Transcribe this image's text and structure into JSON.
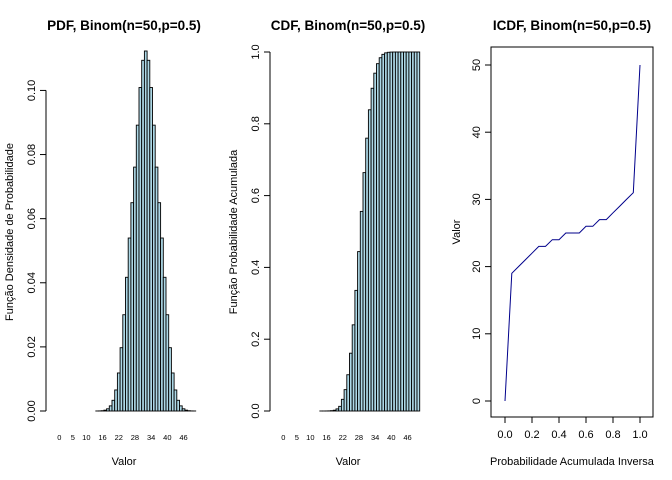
{
  "chart_data": [
    {
      "type": "bar",
      "title": "PDF, Binom(n=50,p=0.5)",
      "xlabel": "Valor",
      "ylabel": "Função Densidade de Probabilidade",
      "n": 50,
      "p": 0.5,
      "ylim": [
        0,
        0.1123
      ],
      "yticks": [
        0.0,
        0.02,
        0.04,
        0.06,
        0.08,
        0.1
      ],
      "ytick_labels": [
        "0.00",
        "0.02",
        "0.04",
        "0.06",
        "0.08",
        "0.10"
      ],
      "xtick_labels": [
        "0",
        "5",
        "10",
        "16",
        "22",
        "28",
        "34",
        "40",
        "46"
      ],
      "bar_color": "#ADD8E6",
      "values": [
        0,
        0,
        0,
        0,
        0,
        0,
        0,
        0,
        0,
        0,
        0,
        0,
        0,
        0,
        1e-05,
        3e-05,
        9e-05,
        0.00026,
        0.00069,
        0.0016,
        0.00334,
        0.00656,
        0.01186,
        0.01975,
        0.03003,
        0.04171,
        0.05396,
        0.06498,
        0.07608,
        0.08917,
        0.1009,
        0.1094,
        0.1123,
        0.1094,
        0.1009,
        0.08917,
        0.07608,
        0.06498,
        0.05396,
        0.04171,
        0.03003,
        0.01975,
        0.01186,
        0.00656,
        0.00334,
        0.0016,
        0.00069,
        0.00026,
        9e-05,
        3e-05,
        1e-05
      ]
    },
    {
      "type": "bar",
      "title": "CDF, Binom(n=50,p=0.5)",
      "xlabel": "Valor",
      "ylabel": "Função Probabilidade Acumulada",
      "ylim": [
        0,
        1
      ],
      "yticks": [
        0.0,
        0.2,
        0.4,
        0.6,
        0.8,
        1.0
      ],
      "ytick_labels": [
        "0.0",
        "0.2",
        "0.4",
        "0.6",
        "0.8",
        "1.0"
      ],
      "xtick_labels": [
        "0",
        "5",
        "10",
        "16",
        "22",
        "28",
        "34",
        "40",
        "46"
      ],
      "bar_color": "#ADD8E6",
      "values": [
        0,
        0,
        0,
        0,
        0,
        0,
        0,
        0,
        0,
        0,
        0,
        0,
        0,
        0,
        1e-05,
        3e-05,
        0.00015,
        0.00038,
        0.00095,
        0.0022,
        0.0059,
        0.013,
        0.0325,
        0.0595,
        0.101,
        0.161,
        0.24,
        0.336,
        0.444,
        0.556,
        0.664,
        0.76,
        0.839,
        0.899,
        0.941,
        0.9675,
        0.984,
        0.9935,
        0.9976,
        0.9992,
        0.9998,
        0.99995,
        1,
        1,
        1,
        1,
        1,
        1,
        1,
        1,
        1
      ]
    },
    {
      "type": "line",
      "title": "ICDF, Binom(n=50,p=0.5)",
      "xlabel": "Probabilidade Acumulada Inversa",
      "ylabel": "Valor",
      "xlim": [
        0,
        1
      ],
      "ylim": [
        0,
        50
      ],
      "xticks": [
        0.0,
        0.2,
        0.4,
        0.6,
        0.8,
        1.0
      ],
      "xtick_labels": [
        "0.0",
        "0.2",
        "0.4",
        "0.6",
        "0.8",
        "1.0"
      ],
      "yticks": [
        0,
        10,
        20,
        30,
        40,
        50
      ],
      "ytick_labels": [
        "0",
        "10",
        "20",
        "30",
        "40",
        "50"
      ],
      "line_color": "#00008B",
      "x": [
        0.0,
        0.05,
        0.1,
        0.15,
        0.2,
        0.25,
        0.3,
        0.35,
        0.4,
        0.45,
        0.5,
        0.55,
        0.6,
        0.65,
        0.7,
        0.75,
        0.8,
        0.85,
        0.9,
        0.95,
        1.0
      ],
      "y": [
        0,
        19,
        20,
        21,
        22,
        23,
        23,
        24,
        24,
        25,
        25,
        25,
        26,
        26,
        27,
        27,
        28,
        29,
        30,
        31,
        50
      ]
    }
  ]
}
